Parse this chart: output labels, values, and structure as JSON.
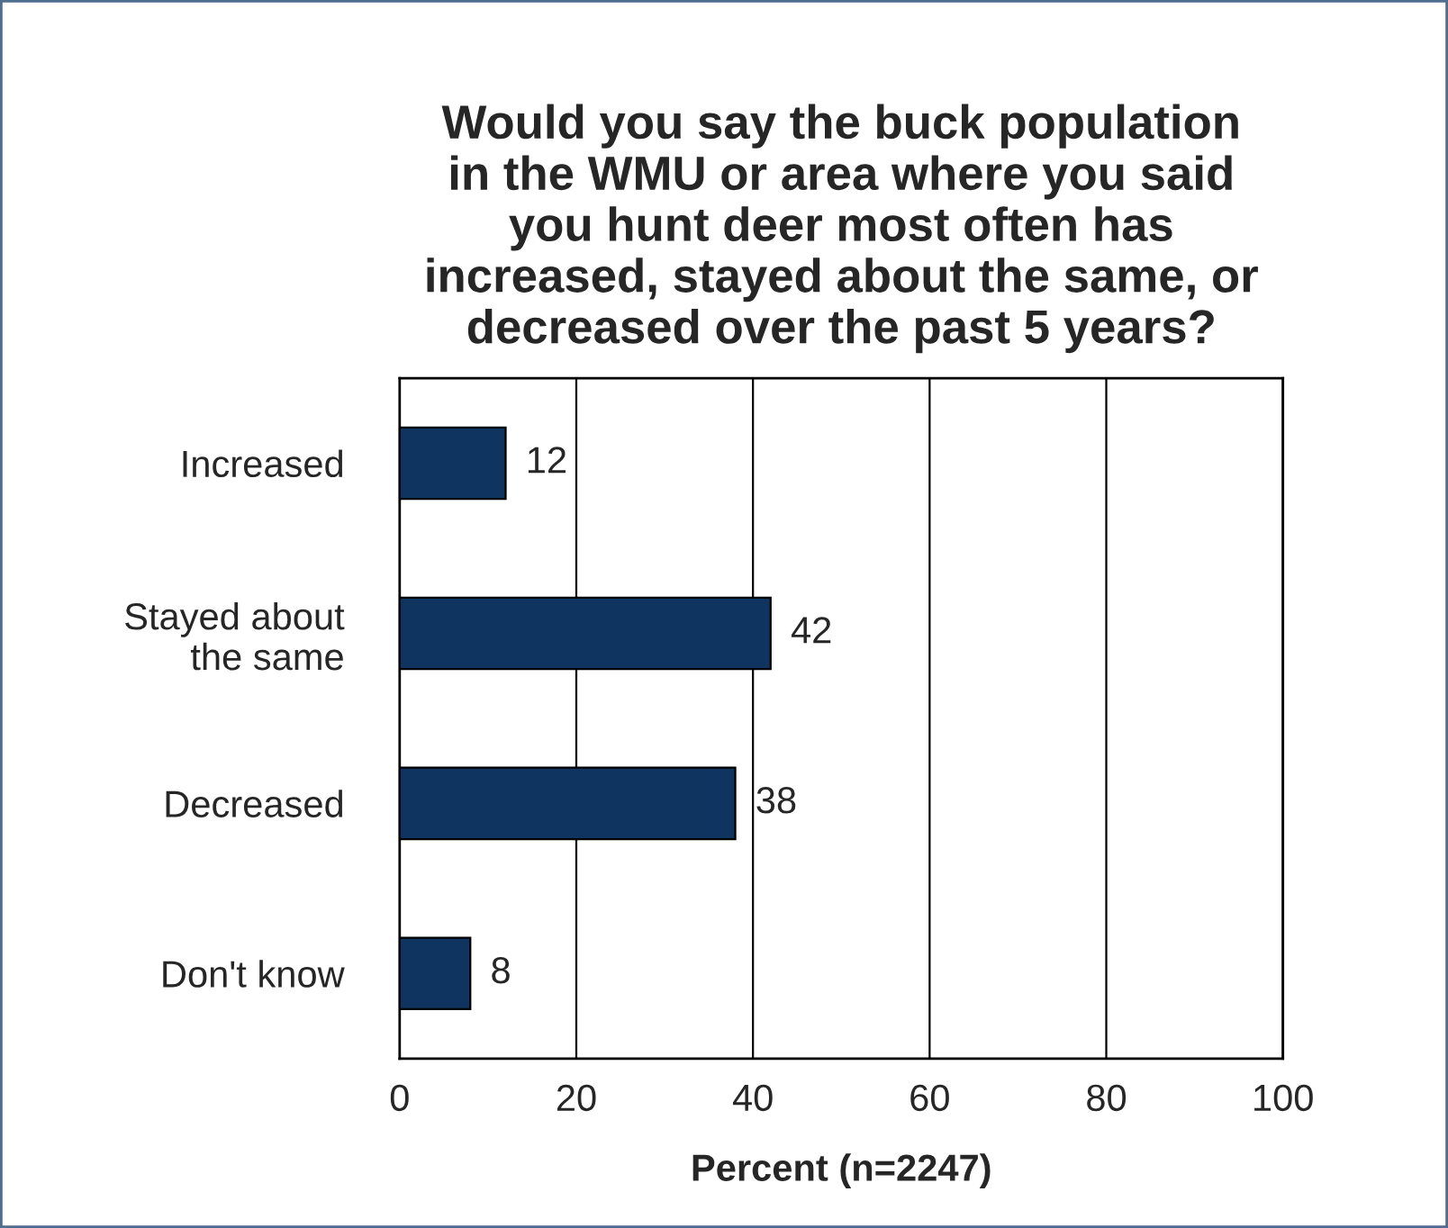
{
  "chart_data": {
    "type": "bar",
    "orientation": "horizontal",
    "title": "Would you say the buck population in the WMU or area where you said you hunt deer most often has increased, stayed about the same, or decreased over the past 5 years?",
    "xlabel": "Percent (n=2247)",
    "categories": [
      "Increased",
      "Stayed about\nthe same",
      "Decreased",
      "Don't know"
    ],
    "values": [
      12,
      42,
      38,
      8
    ],
    "color": "#0f3460",
    "xlim": [
      0,
      100
    ],
    "xticks": [
      0,
      20,
      40,
      60,
      80,
      100
    ],
    "grid": "x",
    "data_labels": true
  }
}
